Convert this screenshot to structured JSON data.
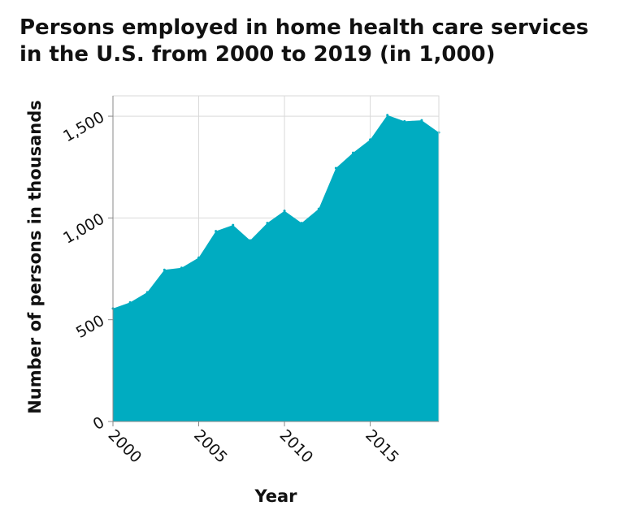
{
  "chart_data": {
    "type": "area",
    "title": "Persons employed in home health care services in the U.S. from 2000 to 2019 (in 1,000)",
    "title_lines": [
      "Persons employed in home health care services",
      "in the U.S. from 2000 to 2019 (in 1,000)"
    ],
    "xlabel": "Year",
    "ylabel": "Number of persons in thousands",
    "xlim": [
      2000,
      2019
    ],
    "ylim": [
      0,
      1600
    ],
    "x_ticks": [
      2000,
      2005,
      2010,
      2015
    ],
    "x_tick_labels": [
      "2000",
      "2005",
      "2010",
      "2015"
    ],
    "y_ticks": [
      0,
      500,
      1000,
      1500
    ],
    "y_tick_labels": [
      "0",
      "500",
      "1,000",
      "1,500"
    ],
    "grid": true,
    "fill_color": "#00acc1",
    "x": [
      2000,
      2001,
      2002,
      2003,
      2004,
      2005,
      2006,
      2007,
      2008,
      2009,
      2010,
      2011,
      2012,
      2013,
      2014,
      2015,
      2016,
      2017,
      2018,
      2019
    ],
    "values": [
      555,
      585,
      635,
      745,
      755,
      805,
      935,
      965,
      890,
      975,
      1035,
      975,
      1045,
      1245,
      1320,
      1385,
      1505,
      1475,
      1480,
      1420
    ]
  }
}
